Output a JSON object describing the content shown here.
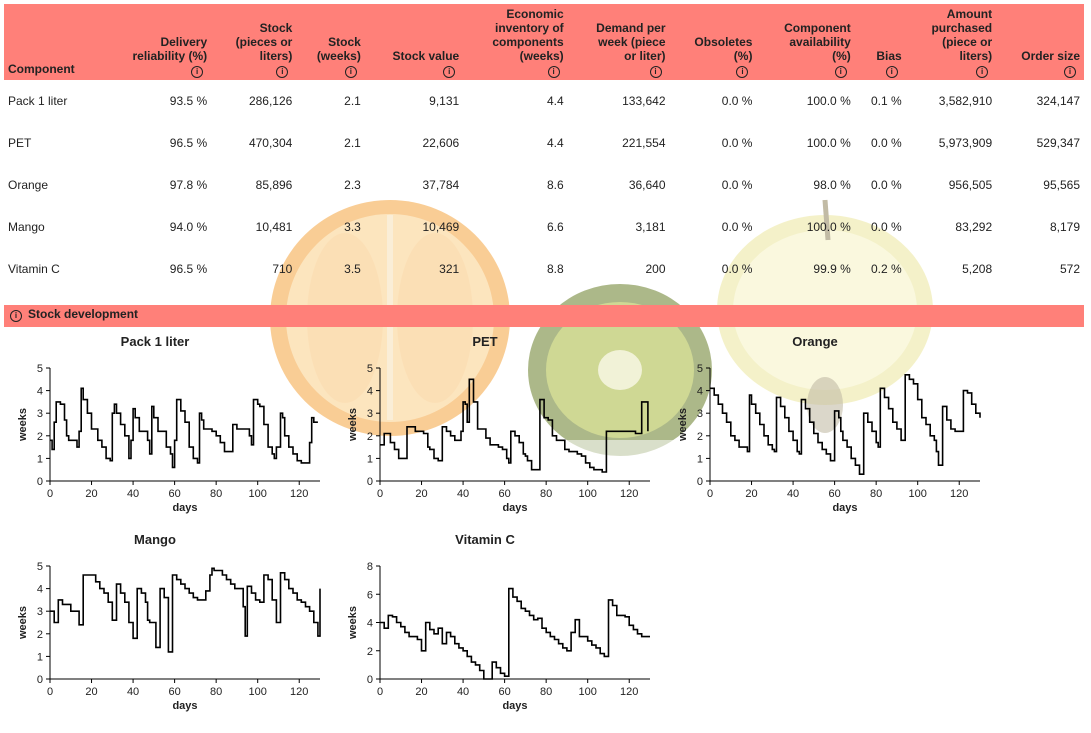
{
  "table": {
    "headers": [
      {
        "label": "Component",
        "info": false
      },
      {
        "label": "Delivery\nreliability (%)",
        "info": true
      },
      {
        "label": "Stock\n(pieces or\nliters)",
        "info": true
      },
      {
        "label": "Stock\n(weeks)",
        "info": true
      },
      {
        "label": "Stock value",
        "info": true
      },
      {
        "label": "Economic\ninventory of\ncomponents\n(weeks)",
        "info": true
      },
      {
        "label": "Demand per\nweek (piece\nor liter)",
        "info": true
      },
      {
        "label": "Obsoletes\n(%)",
        "info": true
      },
      {
        "label": "Component\navailability\n(%)",
        "info": true
      },
      {
        "label": "Bias",
        "info": true
      },
      {
        "label": "Amount\npurchased\n(piece or\nliters)",
        "info": true
      },
      {
        "label": "Order size",
        "info": true
      }
    ],
    "rows": [
      [
        "Pack 1 liter",
        "93.5 %",
        "286,126",
        "2.1",
        "9,131",
        "4.4",
        "133,642",
        "0.0 %",
        "100.0 %",
        "0.1 %",
        "3,582,910",
        "324,147"
      ],
      [
        "PET",
        "96.5 %",
        "470,304",
        "2.1",
        "22,606",
        "4.4",
        "221,554",
        "0.0 %",
        "100.0 %",
        "0.0 %",
        "5,973,909",
        "529,347"
      ],
      [
        "Orange",
        "97.8 %",
        "85,896",
        "2.3",
        "37,784",
        "8.6",
        "36,640",
        "0.0 %",
        "98.0 %",
        "0.0 %",
        "956,505",
        "95,565"
      ],
      [
        "Mango",
        "94.0 %",
        "10,481",
        "3.3",
        "10,469",
        "6.6",
        "3,181",
        "0.0 %",
        "100.0 %",
        "0.0 %",
        "83,292",
        "8,179"
      ],
      [
        "Vitamin C",
        "96.5 %",
        "710",
        "3.5",
        "321",
        "8.8",
        "200",
        "0.0 %",
        "99.9 %",
        "0.2 %",
        "5,208",
        "572"
      ]
    ]
  },
  "info_symbol": "i",
  "section_title": "Stock development",
  "colors": {
    "header_bg": "#ff8079",
    "line": "#000000"
  },
  "chart_data": [
    {
      "type": "line",
      "title": "Pack 1 liter",
      "xlabel": "days",
      "ylabel": "weeks",
      "xlim": [
        0,
        130
      ],
      "ylim": [
        0,
        5
      ],
      "xticks": [
        0,
        20,
        40,
        60,
        80,
        100,
        120
      ],
      "yticks": [
        0,
        1,
        2,
        3,
        4,
        5
      ],
      "x": [
        0,
        1,
        2,
        3,
        5,
        7,
        8,
        9,
        11,
        13,
        14,
        15,
        16,
        18,
        20,
        22,
        23,
        25,
        27,
        29,
        30,
        31,
        32,
        34,
        36,
        38,
        39,
        40,
        41,
        43,
        45,
        47,
        48,
        49,
        50,
        52,
        54,
        56,
        58,
        59,
        60,
        61,
        63,
        65,
        67,
        69,
        71,
        72,
        73,
        74,
        76,
        78,
        80,
        82,
        84,
        86,
        88,
        90,
        92,
        94,
        96,
        97,
        98,
        100,
        101,
        103,
        105,
        107,
        108,
        109,
        111,
        112,
        113,
        115,
        117,
        119,
        121,
        123,
        125,
        126,
        127,
        129
      ],
      "y": [
        1.8,
        1.4,
        2.6,
        3.5,
        3.4,
        2.7,
        2.0,
        1.8,
        1.8,
        1.5,
        2.2,
        4.1,
        3.6,
        3.0,
        2.3,
        2.3,
        1.8,
        1.5,
        1.0,
        0.9,
        3.0,
        3.4,
        3.0,
        2.5,
        2.0,
        1.0,
        1.8,
        3.2,
        2.8,
        2.2,
        2.2,
        1.8,
        1.2,
        3.3,
        2.8,
        2.2,
        2.2,
        1.5,
        1.2,
        0.6,
        1.8,
        3.6,
        3.1,
        2.6,
        1.5,
        1.0,
        0.8,
        3.0,
        2.7,
        2.3,
        2.3,
        2.2,
        2.0,
        1.7,
        1.3,
        1.3,
        2.5,
        2.3,
        2.3,
        2.3,
        2.0,
        1.6,
        3.6,
        3.4,
        3.3,
        2.5,
        1.5,
        1.2,
        1.0,
        1.5,
        3.0,
        2.8,
        2.0,
        1.5,
        1.2,
        0.9,
        0.8,
        0.8,
        1.7,
        2.8,
        2.6,
        2.6
      ]
    },
    {
      "type": "line",
      "title": "PET",
      "xlabel": "days",
      "ylabel": "weeks",
      "xlim": [
        0,
        130
      ],
      "ylim": [
        0,
        5
      ],
      "xticks": [
        0,
        20,
        40,
        60,
        80,
        100,
        120
      ],
      "yticks": [
        0,
        1,
        2,
        3,
        4,
        5
      ],
      "x": [
        0,
        2,
        3,
        5,
        7,
        9,
        11,
        13,
        15,
        17,
        19,
        21,
        23,
        24,
        26,
        28,
        30,
        32,
        34,
        36,
        38,
        39,
        40,
        41,
        42,
        43,
        45,
        47,
        49,
        51,
        53,
        55,
        57,
        59,
        61,
        62,
        63,
        65,
        67,
        69,
        70,
        71,
        73,
        75,
        77,
        79,
        81,
        83,
        85,
        87,
        89,
        91,
        93,
        95,
        97,
        99,
        101,
        103,
        105,
        107,
        108,
        109,
        111,
        113,
        115,
        117,
        119,
        121,
        123,
        125,
        126,
        127,
        129
      ],
      "y": [
        1.6,
        2.1,
        2.1,
        1.7,
        1.4,
        1.0,
        1.0,
        2.4,
        2.4,
        2.2,
        2.2,
        2.1,
        1.5,
        1.4,
        1.0,
        0.9,
        2.4,
        2.2,
        2.0,
        1.8,
        1.8,
        2.2,
        3.5,
        3.4,
        2.6,
        4.5,
        3.5,
        2.3,
        2.3,
        1.9,
        1.6,
        1.6,
        1.5,
        1.4,
        1.0,
        0.8,
        2.2,
        2.0,
        1.7,
        1.2,
        1.1,
        0.9,
        0.5,
        0.5,
        3.6,
        2.8,
        2.7,
        2.0,
        1.8,
        1.8,
        1.4,
        1.3,
        1.3,
        1.2,
        1.1,
        0.8,
        0.6,
        0.5,
        0.5,
        0.4,
        0.4,
        2.2,
        2.2,
        2.2,
        2.2,
        2.2,
        2.2,
        2.2,
        2.1,
        2.1,
        3.5,
        3.5,
        2.2
      ]
    },
    {
      "type": "line",
      "title": "Orange",
      "xlabel": "days",
      "ylabel": "weeks",
      "xlim": [
        0,
        130
      ],
      "ylim": [
        0,
        5
      ],
      "xticks": [
        0,
        20,
        40,
        60,
        80,
        100,
        120
      ],
      "yticks": [
        0,
        1,
        2,
        3,
        4,
        5
      ],
      "x": [
        0,
        2,
        4,
        6,
        8,
        10,
        12,
        14,
        16,
        18,
        19,
        20,
        22,
        24,
        26,
        28,
        30,
        31,
        32,
        34,
        36,
        38,
        40,
        42,
        43,
        44,
        46,
        48,
        50,
        52,
        54,
        56,
        58,
        60,
        62,
        63,
        64,
        66,
        68,
        70,
        72,
        74,
        76,
        78,
        80,
        81,
        82,
        84,
        86,
        88,
        90,
        92,
        94,
        96,
        98,
        100,
        102,
        104,
        106,
        108,
        109,
        110,
        112,
        114,
        116,
        118,
        120,
        122,
        124,
        126,
        128,
        130
      ],
      "y": [
        4.1,
        3.8,
        3.4,
        3.0,
        2.6,
        2.0,
        1.8,
        1.5,
        1.5,
        1.3,
        3.8,
        3.4,
        3.0,
        2.5,
        2.0,
        1.6,
        1.4,
        1.3,
        3.7,
        3.3,
        2.8,
        2.2,
        1.8,
        1.3,
        1.2,
        3.6,
        3.2,
        2.6,
        2.1,
        1.7,
        1.4,
        1.2,
        0.9,
        3.1,
        2.8,
        2.2,
        1.8,
        1.5,
        1.0,
        0.7,
        0.3,
        3.0,
        2.6,
        2.2,
        1.7,
        1.5,
        4.1,
        3.7,
        3.2,
        2.6,
        2.3,
        1.8,
        4.7,
        4.5,
        4.3,
        3.6,
        2.8,
        2.5,
        2.0,
        1.8,
        1.3,
        0.7,
        3.3,
        2.7,
        2.3,
        2.2,
        2.2,
        4.0,
        3.9,
        3.4,
        3.0,
        2.8
      ]
    },
    {
      "type": "line",
      "title": "Mango",
      "xlabel": "days",
      "ylabel": "weeks",
      "xlim": [
        0,
        130
      ],
      "ylim": [
        0,
        5
      ],
      "xticks": [
        0,
        20,
        40,
        60,
        80,
        100,
        120
      ],
      "yticks": [
        0,
        1,
        2,
        3,
        4,
        5
      ],
      "x": [
        0,
        2,
        4,
        6,
        8,
        10,
        12,
        14,
        16,
        17,
        18,
        20,
        22,
        24,
        26,
        28,
        30,
        32,
        34,
        36,
        38,
        40,
        42,
        44,
        46,
        47,
        48,
        50,
        51,
        53,
        55,
        57,
        59,
        61,
        63,
        65,
        67,
        69,
        71,
        73,
        75,
        77,
        78,
        79,
        81,
        83,
        85,
        87,
        89,
        91,
        93,
        94,
        95,
        97,
        99,
        101,
        103,
        105,
        107,
        109,
        111,
        113,
        115,
        117,
        119,
        121,
        123,
        125,
        127,
        129,
        130
      ],
      "y": [
        3.0,
        2.5,
        3.5,
        3.3,
        3.3,
        3.0,
        3.0,
        2.4,
        4.6,
        4.6,
        4.6,
        4.6,
        4.3,
        4.0,
        3.8,
        3.4,
        2.6,
        4.2,
        3.8,
        3.4,
        2.5,
        1.8,
        4.0,
        3.8,
        3.4,
        2.6,
        2.5,
        2.5,
        1.4,
        4.0,
        3.6,
        1.2,
        4.6,
        4.4,
        4.2,
        4.0,
        3.8,
        3.6,
        3.5,
        3.5,
        3.9,
        4.6,
        4.9,
        4.8,
        4.8,
        4.6,
        4.4,
        4.2,
        4.0,
        4.0,
        3.2,
        1.9,
        4.1,
        3.8,
        3.5,
        3.4,
        4.6,
        4.4,
        3.5,
        2.5,
        4.7,
        4.4,
        4.0,
        3.8,
        3.5,
        3.4,
        3.2,
        3.0,
        2.5,
        1.9,
        4.0
      ]
    },
    {
      "type": "line",
      "title": "Vitamin C",
      "xlabel": "days",
      "ylabel": "weeks",
      "xlim": [
        0,
        130
      ],
      "ylim": [
        0,
        8
      ],
      "xticks": [
        0,
        20,
        40,
        60,
        80,
        100,
        120
      ],
      "yticks": [
        0,
        2,
        4,
        6,
        8
      ],
      "x": [
        0,
        2,
        4,
        6,
        8,
        10,
        12,
        14,
        16,
        18,
        20,
        22,
        24,
        26,
        28,
        30,
        32,
        34,
        36,
        38,
        40,
        42,
        44,
        46,
        48,
        50,
        52,
        54,
        56,
        58,
        60,
        62,
        64,
        66,
        68,
        70,
        72,
        74,
        76,
        78,
        80,
        82,
        84,
        86,
        88,
        90,
        92,
        94,
        96,
        98,
        100,
        102,
        104,
        106,
        108,
        110,
        112,
        114,
        116,
        118,
        120,
        122,
        124,
        126,
        128,
        130
      ],
      "y": [
        4.0,
        3.6,
        4.5,
        4.4,
        4.0,
        3.7,
        3.3,
        3.0,
        3.0,
        2.8,
        2.0,
        4.0,
        3.5,
        3.2,
        3.6,
        2.5,
        3.3,
        3.0,
        2.5,
        2.2,
        2.0,
        1.6,
        1.2,
        1.0,
        0.6,
        0.0,
        0.0,
        1.2,
        0.8,
        0.4,
        0.2,
        6.4,
        5.8,
        5.5,
        5.0,
        4.8,
        4.5,
        4.2,
        4.3,
        3.6,
        3.3,
        3.0,
        2.8,
        2.5,
        2.2,
        2.0,
        3.3,
        4.2,
        3.0,
        3.0,
        2.7,
        2.4,
        2.2,
        1.8,
        1.6,
        5.6,
        5.2,
        4.5,
        4.5,
        4.4,
        3.8,
        3.5,
        3.2,
        3.0,
        3.0,
        3.0
      ]
    }
  ]
}
